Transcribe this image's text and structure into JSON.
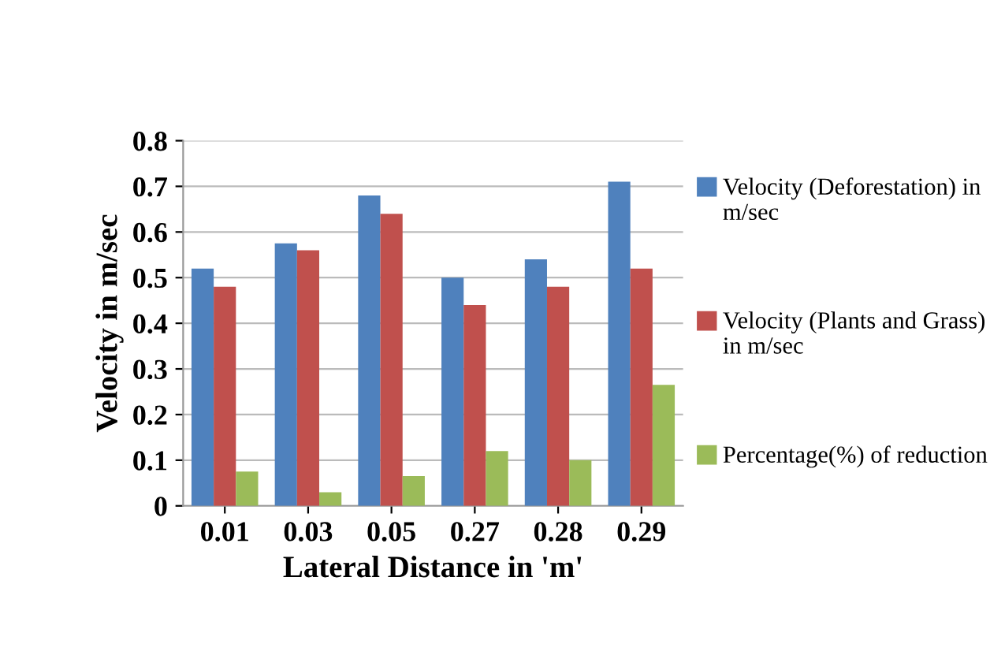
{
  "chart_data": {
    "type": "bar",
    "xlabel": "Lateral Distance in 'm'",
    "ylabel": "Velocity in m/sec",
    "categories": [
      "0.01",
      "0.03",
      "0.05",
      "0.27",
      "0.28",
      "0.29"
    ],
    "series": [
      {
        "name": "Velocity (Deforestation) in m/sec",
        "color": "#4f81bd",
        "values": [
          0.52,
          0.575,
          0.68,
          0.5,
          0.54,
          0.71
        ]
      },
      {
        "name": "Velocity (Plants and Grass) in m/sec",
        "color": "#c0504d",
        "values": [
          0.48,
          0.56,
          0.64,
          0.44,
          0.48,
          0.52
        ]
      },
      {
        "name": "Percentage(%) of reduction",
        "color": "#9bbb59",
        "values": [
          0.075,
          0.03,
          0.065,
          0.12,
          0.1,
          0.265
        ]
      }
    ],
    "ylim": [
      0,
      0.8
    ],
    "yticks": [
      0,
      0.1,
      0.2,
      0.3,
      0.4,
      0.5,
      0.6,
      0.7,
      0.8
    ],
    "grid": "y",
    "legend": "right"
  }
}
